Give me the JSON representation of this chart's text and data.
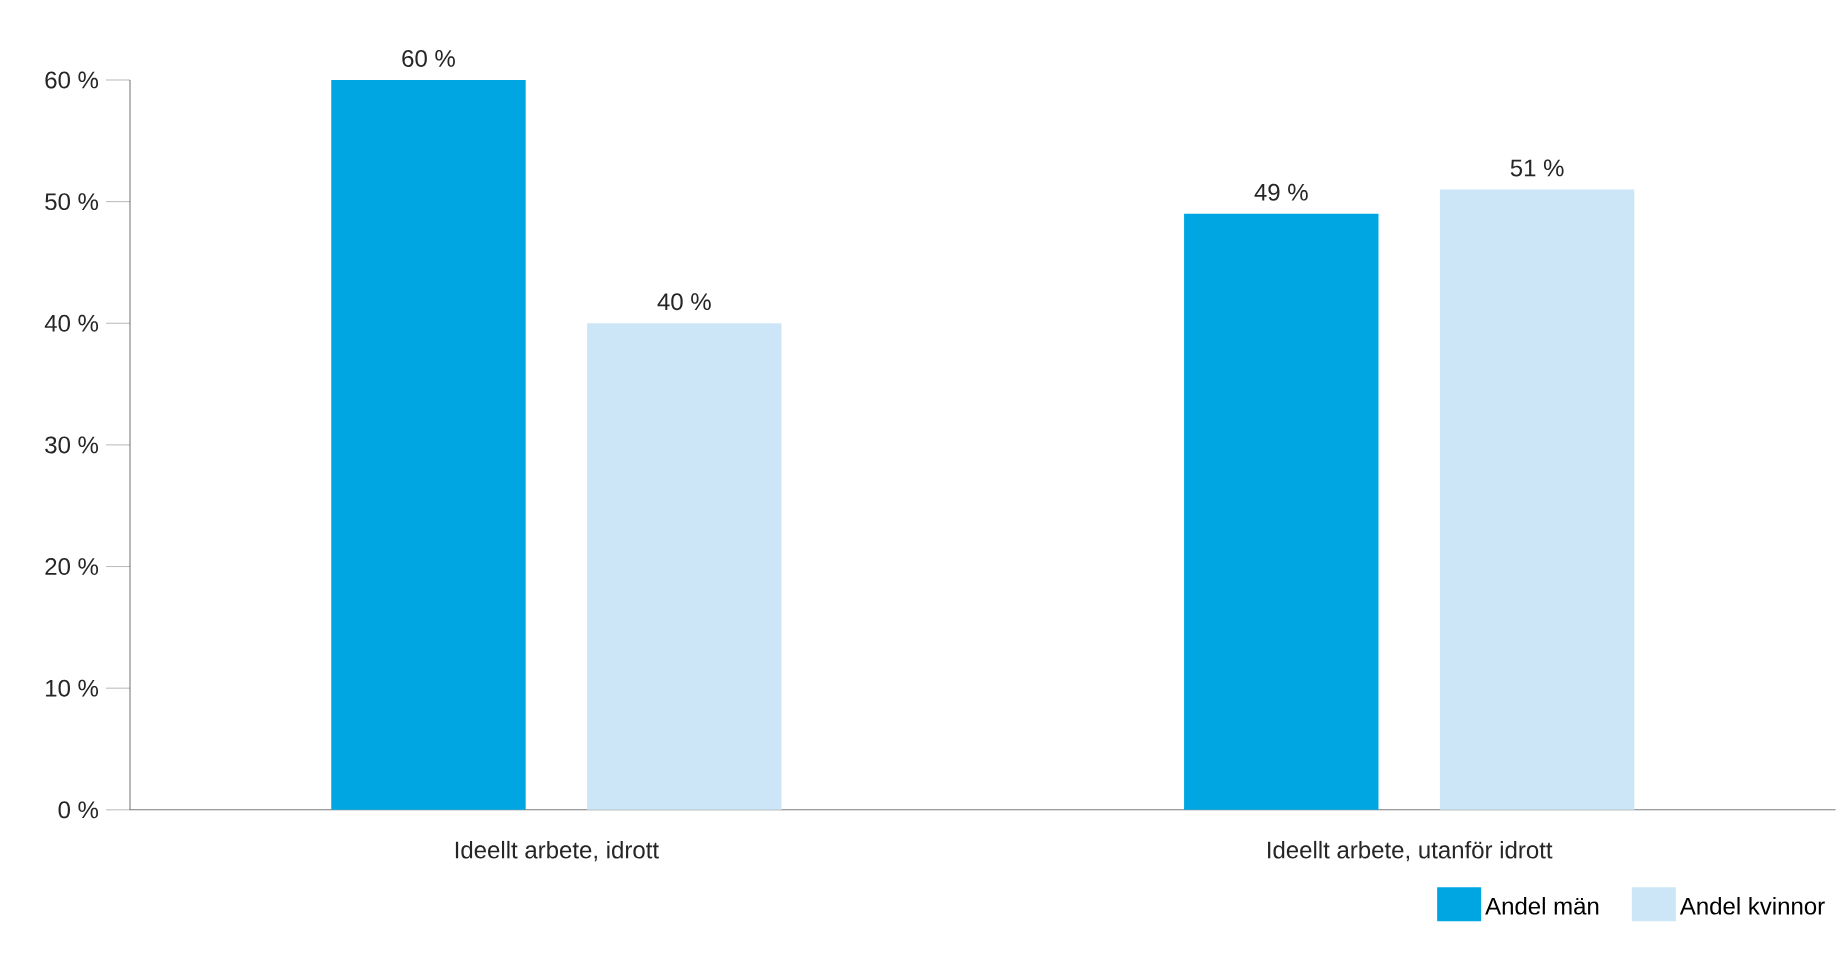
{
  "chart_data": {
    "type": "bar",
    "categories": [
      "Ideellt arbete, idrott",
      "Ideellt arbete, utanför idrott"
    ],
    "series": [
      {
        "name": "Andel män",
        "color": "#00a6e2",
        "values": [
          60,
          49
        ],
        "value_labels": [
          "60 %",
          "49 %"
        ]
      },
      {
        "name": "Andel kvinnor",
        "color": "#cce6f7",
        "values": [
          40,
          51
        ],
        "value_labels": [
          "40 %",
          "51 %"
        ]
      }
    ],
    "ylim": [
      0,
      60
    ],
    "yticks": [
      {
        "value": 0,
        "label": "0 %"
      },
      {
        "value": 10,
        "label": "10 %"
      },
      {
        "value": 20,
        "label": "20 %"
      },
      {
        "value": 30,
        "label": "30 %"
      },
      {
        "value": 40,
        "label": "40 %"
      },
      {
        "value": 50,
        "label": "50 %"
      },
      {
        "value": 60,
        "label": "60 %"
      }
    ],
    "grid": false,
    "legend": "bottom right"
  }
}
